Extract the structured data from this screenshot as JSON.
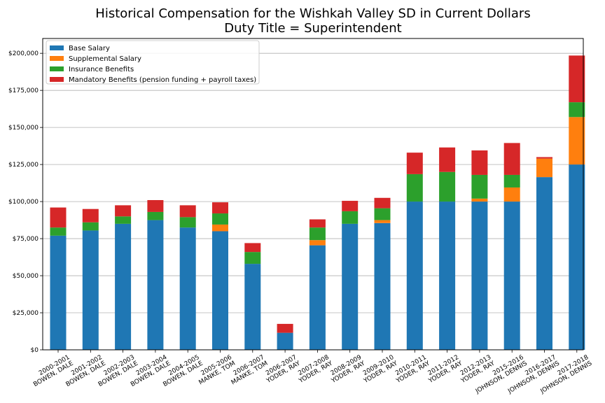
{
  "chart_data": {
    "type": "bar",
    "stacked": true,
    "title": "Historical Compensation for the Wishkah Valley SD in Current Dollars",
    "subtitle": "Duty Title = Superintendent",
    "xlabel": "",
    "ylabel": "",
    "ylim": [
      0,
      210000
    ],
    "yticks": [
      "$0",
      "$25,000",
      "$50,000",
      "$75,000",
      "$100,000",
      "$125,000",
      "$150,000",
      "$175,000",
      "$200,000"
    ],
    "ytick_values": [
      0,
      25000,
      50000,
      75000,
      100000,
      125000,
      150000,
      175000,
      200000
    ],
    "grid": "horizontal",
    "legend_position": "top-left",
    "categories": [
      [
        "2000-2001",
        "BOWEN, DALE"
      ],
      [
        "2001-2002",
        "BOWEN, DALE"
      ],
      [
        "2002-2003",
        "BOWEN, DALE"
      ],
      [
        "2003-2004",
        "BOWEN, DALE"
      ],
      [
        "2004-2005",
        "BOWEN, DALE"
      ],
      [
        "2005-2006",
        "MANKE, TOM"
      ],
      [
        "2006-2007",
        "MANKE, TOM"
      ],
      [
        "2006-2007",
        "YODER, RAY"
      ],
      [
        "2007-2008",
        "YODER, RAY"
      ],
      [
        "2008-2009",
        "YODER, RAY"
      ],
      [
        "2009-2010",
        "YODER, RAY"
      ],
      [
        "2010-2011",
        "YODER, RAY"
      ],
      [
        "2011-2012",
        "YODER, RAY"
      ],
      [
        "2012-2013",
        "YODER, RAY"
      ],
      [
        "2015-2016",
        "JOHNSON, DENNIS"
      ],
      [
        "2016-2017",
        "JOHNSON, DENNIS"
      ],
      [
        "2017-2018",
        "JOHNSON, DENNIS"
      ]
    ],
    "series": [
      {
        "name": "Base Salary",
        "color": "#1f77b4",
        "values": [
          77000,
          80500,
          85000,
          87500,
          82500,
          80000,
          58000,
          11500,
          70500,
          85000,
          85500,
          100000,
          100000,
          100000,
          100000,
          116500,
          125000
        ]
      },
      {
        "name": "Supplemental Salary",
        "color": "#ff7f0e",
        "values": [
          0,
          0,
          0,
          0,
          0,
          4500,
          0,
          0,
          3500,
          0,
          2000,
          0,
          0,
          2000,
          9500,
          12500,
          32000
        ]
      },
      {
        "name": "Insurance Benefits",
        "color": "#2ca02c",
        "values": [
          5500,
          5500,
          5000,
          5500,
          7000,
          7500,
          8000,
          0,
          8500,
          8500,
          8000,
          18500,
          20000,
          16000,
          8500,
          0,
          10000
        ]
      },
      {
        "name": "Mandatory Benefits (pension funding + payroll taxes)",
        "color": "#d62728",
        "values": [
          13500,
          9000,
          7500,
          8000,
          8000,
          7500,
          6000,
          6000,
          5500,
          7000,
          7000,
          14500,
          16500,
          16500,
          21500,
          1000,
          31500
        ]
      }
    ]
  }
}
